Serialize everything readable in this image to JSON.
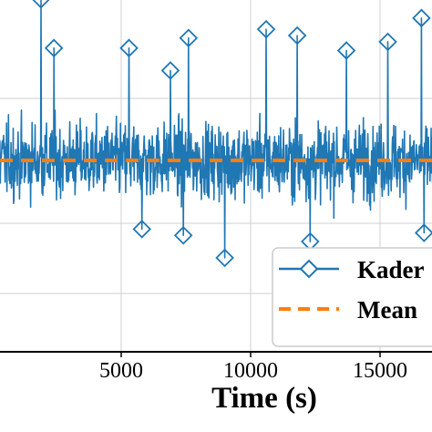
{
  "chart_data": {
    "type": "line",
    "title": "",
    "xlabel": "Time (s)",
    "ylabel": "",
    "x_ticks": [
      "5000",
      "10000",
      "15000"
    ],
    "x_tick_values": [
      5000,
      10000,
      15000
    ],
    "xlim": [
      -1000,
      19000
    ],
    "ylim": [
      -1.3,
      1.3
    ],
    "grid": true,
    "legend_placement": "bottom-right",
    "series": [
      {
        "name": "Kader",
        "style": "solid line with hollow diamond markers",
        "color": "#1f77b4",
        "mean": 0.0,
        "band_spread": 0.45,
        "peaks": [
          {
            "x": 1900,
            "y": 1.29
          },
          {
            "x": 2400,
            "y": 0.9
          },
          {
            "x": 5300,
            "y": 0.9
          },
          {
            "x": 6900,
            "y": 0.72
          },
          {
            "x": 7600,
            "y": 0.98
          },
          {
            "x": 10600,
            "y": 1.05
          },
          {
            "x": 11800,
            "y": 1.0
          },
          {
            "x": 13700,
            "y": 0.88
          },
          {
            "x": 15300,
            "y": 0.95
          },
          {
            "x": 16600,
            "y": 1.14
          }
        ],
        "troughs": [
          {
            "x": 5800,
            "y": -0.55
          },
          {
            "x": 7400,
            "y": -0.6
          },
          {
            "x": 9000,
            "y": -0.78
          },
          {
            "x": 12300,
            "y": -0.65
          },
          {
            "x": 16700,
            "y": -0.58
          }
        ]
      },
      {
        "name": "Mean",
        "style": "dashed line",
        "color": "#ff7f0e",
        "value": 0.0
      }
    ]
  },
  "legend": {
    "entries": [
      "Kader",
      "Mean"
    ]
  }
}
